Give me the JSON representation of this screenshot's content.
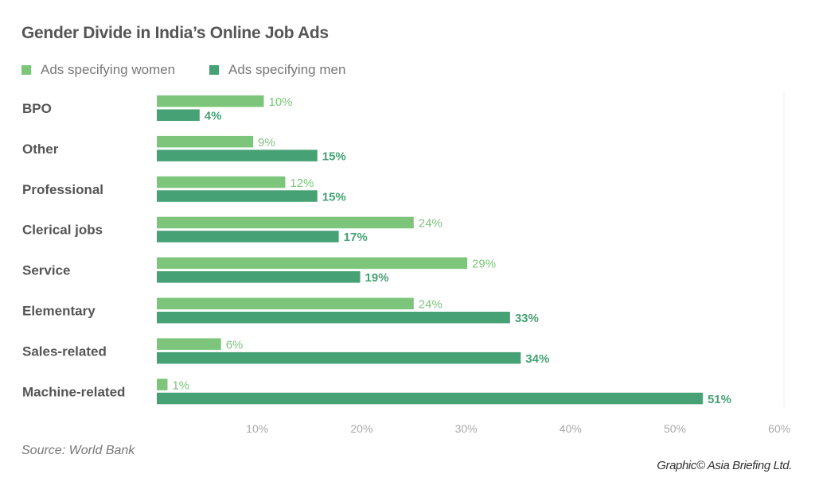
{
  "chart_data": {
    "type": "bar",
    "orientation": "horizontal",
    "title": "Gender Divide in India’s Online Job Ads",
    "categories": [
      "BPO",
      "Other",
      "Professional",
      "Clerical jobs",
      "Service",
      "Elementary",
      "Sales-related",
      "Machine-related"
    ],
    "series": [
      {
        "name": "Ads specifying women",
        "color": "#7cc57a",
        "values": [
          10,
          9,
          12,
          24,
          29,
          24,
          6,
          1
        ]
      },
      {
        "name": "Ads specifying men",
        "color": "#46a175",
        "values": [
          4,
          15,
          15,
          17,
          19,
          33,
          34,
          51
        ]
      }
    ],
    "value_labels": {
      "women": [
        "10%",
        "9%",
        "12%",
        "24%",
        "29%",
        "24%",
        "6%",
        "1%"
      ],
      "men": [
        "4%",
        "15%",
        "15%",
        "17%",
        "19%",
        "33%",
        "34%",
        "51%"
      ]
    },
    "xlim": [
      0,
      60
    ],
    "xticks": [
      "10%",
      "20%",
      "30%",
      "40%",
      "50%",
      "60%"
    ],
    "xtick_values": [
      10,
      20,
      30,
      40,
      50,
      60
    ],
    "grid": false,
    "legend_position": "top-left"
  },
  "source": "Source: World Bank",
  "credit": "Graphic© Asia Briefing Ltd."
}
